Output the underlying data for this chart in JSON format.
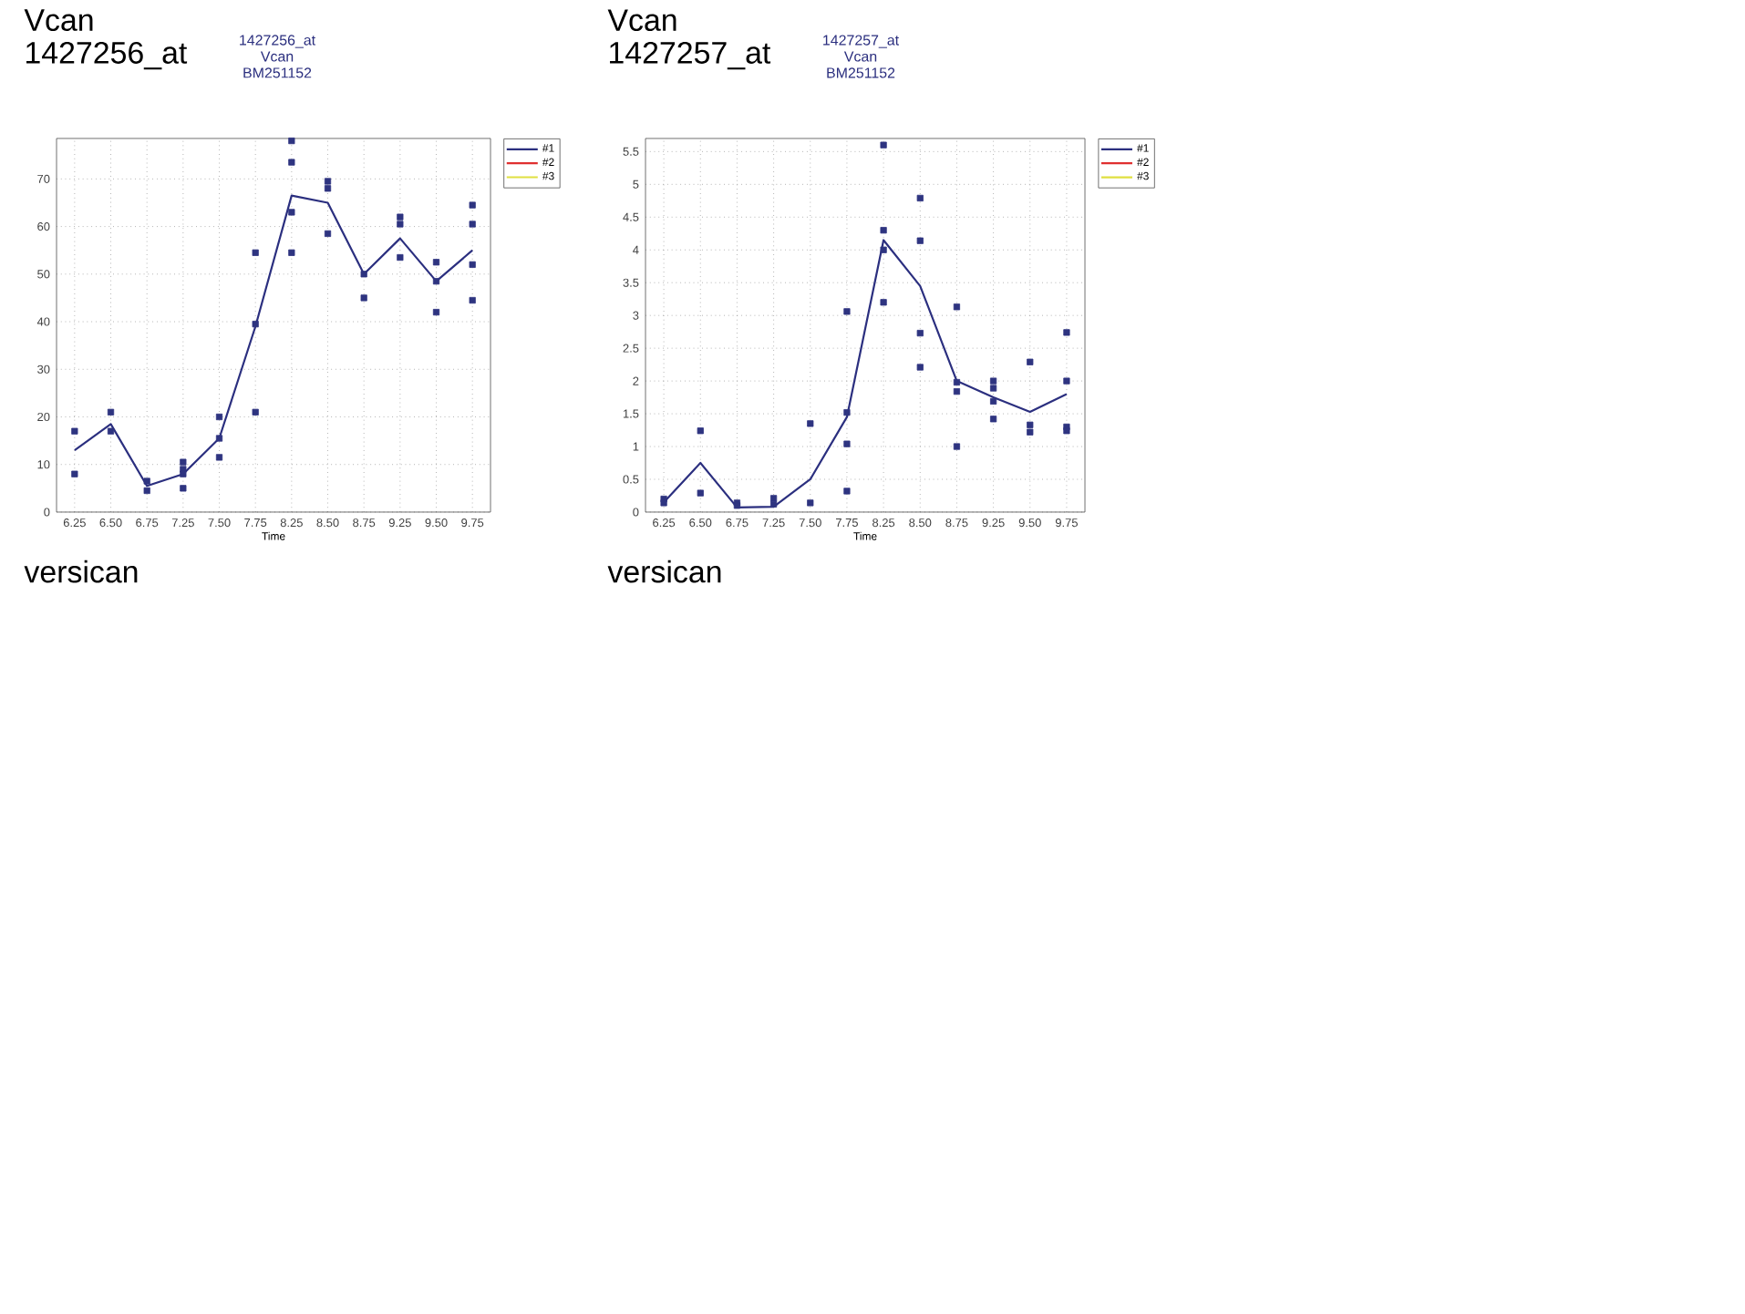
{
  "chart_data": [
    {
      "type": "line",
      "title": "Vcan 1427256_at",
      "subtitle": "1427256_at Vcan BM251152",
      "xlabel": "Time",
      "annotations": [
        "versican"
      ],
      "categories": [
        "6.25",
        "6.50",
        "6.75",
        "7.25",
        "7.50",
        "7.75",
        "8.25",
        "8.50",
        "8.75",
        "9.25",
        "9.50",
        "9.75"
      ],
      "ylim": [
        0,
        78.5
      ],
      "yticks": [
        0,
        10,
        20,
        30,
        40,
        50,
        60,
        70
      ],
      "grid": true,
      "legend": "top right",
      "series": [
        {
          "type": "scatter",
          "color": "#2e3480",
          "marker": "square",
          "x": [
            "6.25",
            "6.25",
            "6.50",
            "6.50",
            "6.75",
            "6.75",
            "7.25",
            "7.25",
            "7.25",
            "7.25",
            "7.50",
            "7.50",
            "7.50",
            "7.75",
            "7.75",
            "7.75",
            "8.25",
            "8.25",
            "8.25",
            "8.25",
            "8.50",
            "8.50",
            "8.50",
            "8.75",
            "8.75",
            "9.25",
            "9.25",
            "9.25",
            "9.50",
            "9.50",
            "9.50",
            "9.75",
            "9.75",
            "9.75",
            "9.75"
          ],
          "values": [
            17,
            8,
            21,
            17,
            6.5,
            4.5,
            10.5,
            9,
            8,
            5,
            20,
            15.5,
            11.5,
            54.5,
            39.5,
            21,
            78,
            73.5,
            63,
            54.5,
            69.5,
            68,
            58.5,
            50,
            45,
            62,
            60.5,
            53.5,
            52.5,
            48.5,
            42,
            64.5,
            60.5,
            52,
            44.5
          ]
        },
        {
          "name": "#1",
          "color": "#2b2f7f",
          "marker": "none",
          "values": [
            13,
            18.5,
            5.5,
            8,
            15.5,
            39,
            66.5,
            65,
            50,
            57.5,
            48.5,
            55
          ]
        },
        {
          "type": "line",
          "name": "#2",
          "color": "#e03030",
          "marker": "none",
          "values": [
            null,
            null,
            null,
            null,
            null,
            null,
            null,
            null,
            null,
            null,
            null,
            null
          ]
        },
        {
          "type": "line",
          "name": "#3",
          "color": "#e0e040",
          "marker": "none",
          "values": [
            null,
            null,
            null,
            null,
            null,
            null,
            null,
            null,
            null,
            null,
            null,
            null
          ]
        }
      ]
    },
    {
      "type": "line",
      "title": "Vcan 1427257_at",
      "subtitle": "1427257_at Vcan BM251152",
      "xlabel": "Time",
      "annotations": [
        "versican"
      ],
      "categories": [
        "6.25",
        "6.50",
        "6.75",
        "7.25",
        "7.50",
        "7.75",
        "8.25",
        "8.50",
        "8.75",
        "9.25",
        "9.50",
        "9.75"
      ],
      "ylim": [
        0,
        5.7
      ],
      "yticks": [
        0,
        0.5,
        1,
        1.5,
        2,
        2.5,
        3,
        3.5,
        4,
        4.5,
        5,
        5.5
      ],
      "grid": true,
      "legend": "top right",
      "series": [
        {
          "type": "scatter",
          "color": "#2e3480",
          "marker": "square",
          "x": [
            "6.25",
            "6.25",
            "6.50",
            "6.50",
            "6.75",
            "6.75",
            "7.25",
            "7.25",
            "7.50",
            "7.50",
            "7.75",
            "7.75",
            "7.75",
            "7.75",
            "8.25",
            "8.25",
            "8.25",
            "8.25",
            "8.50",
            "8.50",
            "8.50",
            "8.50",
            "8.75",
            "8.75",
            "8.75",
            "8.75",
            "9.25",
            "9.25",
            "9.25",
            "9.25",
            "9.50",
            "9.50",
            "9.50",
            "9.75",
            "9.75",
            "9.75",
            "9.75"
          ],
          "values": [
            0.2,
            0.14,
            1.24,
            0.29,
            0.14,
            0.1,
            0.21,
            0.12,
            1.35,
            0.14,
            3.06,
            1.52,
            1.04,
            0.32,
            5.6,
            4.3,
            4.0,
            3.2,
            4.79,
            4.14,
            2.73,
            2.21,
            3.13,
            1.98,
            1.84,
            1.0,
            2.0,
            1.89,
            1.69,
            1.42,
            2.29,
            1.33,
            1.22,
            2.74,
            2.0,
            1.3,
            1.24
          ]
        },
        {
          "name": "#1",
          "color": "#2b2f7f",
          "marker": "none",
          "values": [
            0.15,
            0.75,
            0.07,
            0.08,
            0.5,
            1.45,
            4.15,
            3.45,
            2.0,
            1.75,
            1.53,
            1.8
          ]
        },
        {
          "type": "line",
          "name": "#2",
          "color": "#e03030",
          "marker": "none",
          "values": [
            null,
            null,
            null,
            null,
            null,
            null,
            null,
            null,
            null,
            null,
            null,
            null
          ]
        },
        {
          "type": "line",
          "name": "#3",
          "color": "#e0e040",
          "marker": "none",
          "values": [
            null,
            null,
            null,
            null,
            null,
            null,
            null,
            null,
            null,
            null,
            null,
            null
          ]
        }
      ]
    }
  ]
}
